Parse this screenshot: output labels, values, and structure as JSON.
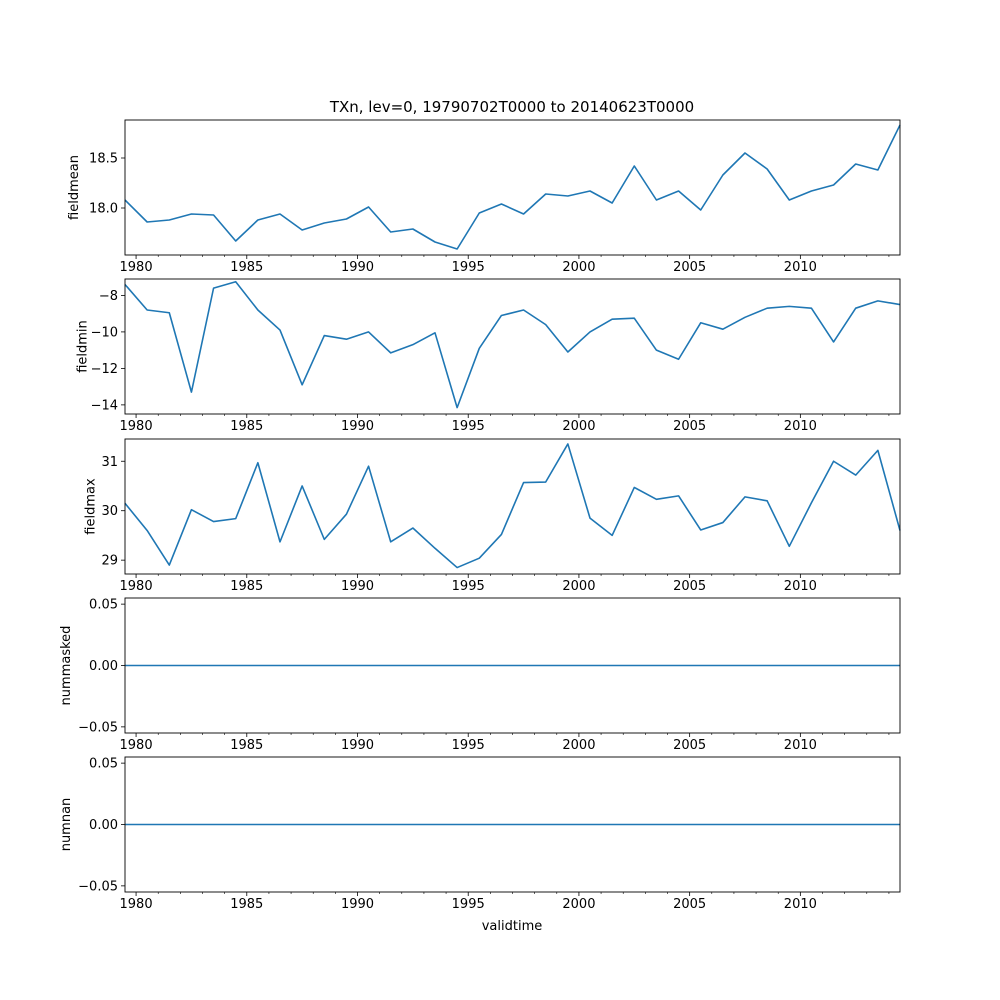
{
  "figure_title": "TXn, lev=0, 19790702T0000 to 20140623T0000",
  "xlabel": "validtime",
  "line_color": "#1f77b4",
  "x_ticks": [
    1980,
    1985,
    1990,
    1995,
    2000,
    2005,
    2010
  ],
  "x_tick_labels": [
    "1980",
    "1985",
    "1990",
    "1995",
    "2000",
    "2005",
    "2010"
  ],
  "chart_data": [
    {
      "type": "line",
      "ylabel": "fieldmean",
      "xlim": [
        1979.5,
        2014.5
      ],
      "ylim": [
        17.53,
        18.88
      ],
      "yticks": [
        18.0,
        18.5
      ],
      "ytick_labels": [
        "18.0",
        "18.5"
      ],
      "x": [
        1979.5,
        1980.5,
        1981.5,
        1982.5,
        1983.5,
        1984.5,
        1985.5,
        1986.5,
        1987.5,
        1988.5,
        1989.5,
        1990.5,
        1991.5,
        1992.5,
        1993.5,
        1994.5,
        1995.5,
        1996.5,
        1997.5,
        1998.5,
        1999.5,
        2000.5,
        2001.5,
        2002.5,
        2003.5,
        2004.5,
        2005.5,
        2006.5,
        2007.5,
        2008.5,
        2009.5,
        2010.5,
        2011.5,
        2012.5,
        2013.5,
        2014.5
      ],
      "values": [
        18.08,
        17.86,
        17.88,
        17.94,
        17.93,
        17.67,
        17.88,
        17.94,
        17.78,
        17.85,
        17.89,
        18.01,
        17.76,
        17.79,
        17.66,
        17.59,
        17.95,
        18.04,
        17.94,
        18.14,
        18.12,
        18.17,
        18.05,
        18.42,
        18.08,
        18.17,
        17.98,
        18.33,
        18.55,
        18.39,
        18.08,
        18.17,
        18.23,
        18.44,
        18.38,
        18.83
      ]
    },
    {
      "type": "line",
      "ylabel": "fieldmin",
      "xlim": [
        1979.5,
        2014.5
      ],
      "ylim": [
        -14.5,
        -7.1
      ],
      "yticks": [
        -14,
        -12,
        -10,
        -8
      ],
      "ytick_labels": [
        "−14",
        "−12",
        "−10",
        "−8"
      ],
      "x": [
        1979.5,
        1980.5,
        1981.5,
        1982.5,
        1983.5,
        1984.5,
        1985.5,
        1986.5,
        1987.5,
        1988.5,
        1989.5,
        1990.5,
        1991.5,
        1992.5,
        1993.5,
        1994.5,
        1995.5,
        1996.5,
        1997.5,
        1998.5,
        1999.5,
        2000.5,
        2001.5,
        2002.5,
        2003.5,
        2004.5,
        2005.5,
        2006.5,
        2007.5,
        2008.5,
        2009.5,
        2010.5,
        2011.5,
        2012.5,
        2013.5,
        2014.5
      ],
      "values": [
        -7.4,
        -8.8,
        -8.95,
        -13.3,
        -7.6,
        -7.25,
        -8.8,
        -9.9,
        -12.9,
        -10.2,
        -10.4,
        -10.0,
        -11.15,
        -10.7,
        -10.05,
        -14.15,
        -10.9,
        -9.1,
        -8.8,
        -9.6,
        -11.1,
        -10.0,
        -9.3,
        -9.25,
        -11.0,
        -11.5,
        -9.5,
        -9.85,
        -9.2,
        -8.7,
        -8.6,
        -8.7,
        -10.55,
        -8.7,
        -8.3,
        -8.5
      ]
    },
    {
      "type": "line",
      "ylabel": "fieldmax",
      "xlim": [
        1979.5,
        2014.5
      ],
      "ylim": [
        28.72,
        31.45
      ],
      "yticks": [
        29,
        30,
        31
      ],
      "ytick_labels": [
        "29",
        "30",
        "31"
      ],
      "x": [
        1979.5,
        1980.5,
        1981.5,
        1982.5,
        1983.5,
        1984.5,
        1985.5,
        1986.5,
        1987.5,
        1988.5,
        1989.5,
        1990.5,
        1991.5,
        1992.5,
        1993.5,
        1994.5,
        1995.5,
        1996.5,
        1997.5,
        1998.5,
        1999.5,
        2000.5,
        2001.5,
        2002.5,
        2003.5,
        2004.5,
        2005.5,
        2006.5,
        2007.5,
        2008.5,
        2009.5,
        2010.5,
        2011.5,
        2012.5,
        2013.5,
        2014.5
      ],
      "values": [
        30.15,
        29.6,
        28.9,
        30.02,
        29.78,
        29.84,
        30.97,
        29.37,
        30.5,
        29.42,
        29.93,
        30.9,
        29.37,
        29.65,
        29.24,
        28.85,
        29.04,
        29.52,
        30.57,
        30.58,
        31.35,
        29.85,
        29.5,
        30.47,
        30.23,
        30.3,
        29.61,
        29.76,
        30.28,
        30.2,
        29.28,
        30.16,
        31.0,
        30.72,
        31.22,
        29.6
      ]
    },
    {
      "type": "line",
      "ylabel": "nummasked",
      "xlim": [
        1979.5,
        2014.5
      ],
      "ylim": [
        -0.055,
        0.055
      ],
      "yticks": [
        -0.05,
        0.0,
        0.05
      ],
      "ytick_labels": [
        "−0.05",
        "0.00",
        "0.05"
      ],
      "x": [
        1979.5,
        2014.5
      ],
      "values": [
        0,
        0
      ]
    },
    {
      "type": "line",
      "ylabel": "numnan",
      "xlim": [
        1979.5,
        2014.5
      ],
      "ylim": [
        -0.055,
        0.055
      ],
      "yticks": [
        -0.05,
        0.0,
        0.05
      ],
      "ytick_labels": [
        "−0.05",
        "0.00",
        "0.05"
      ],
      "x": [
        1979.5,
        2014.5
      ],
      "values": [
        0,
        0
      ]
    }
  ]
}
